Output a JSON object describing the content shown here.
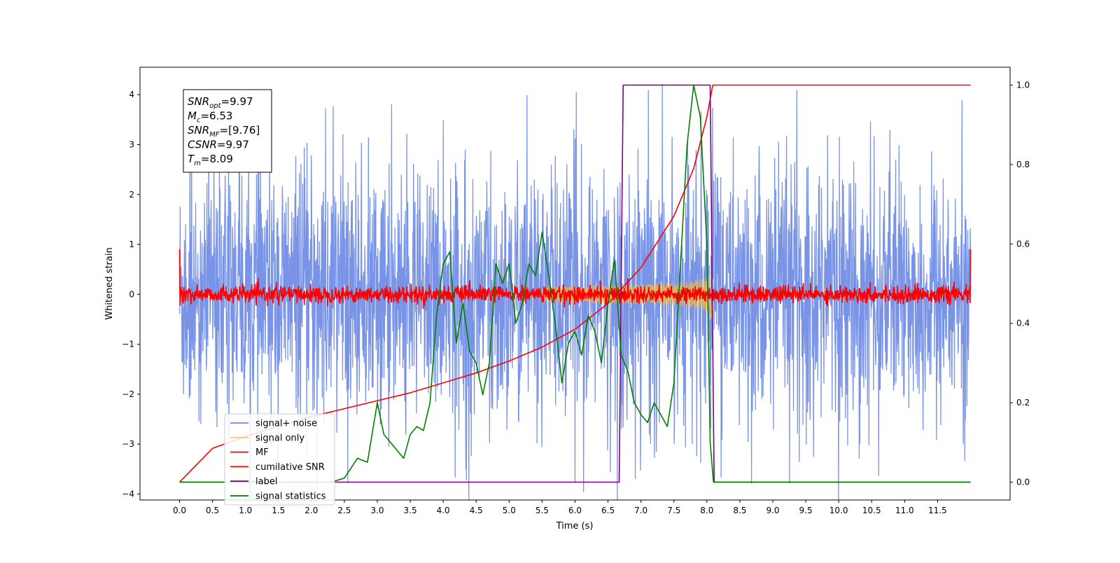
{
  "chart_data": {
    "type": "line",
    "title": "",
    "xlabel": "Time (s)",
    "ylabel": "Whitened strain",
    "xlim": [
      -0.6,
      12.6
    ],
    "ylim": [
      -4.12,
      4.55
    ],
    "y2lim": [
      -0.045,
      1.045
    ],
    "grid": false,
    "legend_position": "lower-left",
    "x_ticks": [
      "0.0",
      "0.5",
      "1.0",
      "1.5",
      "2.0",
      "2.5",
      "3.0",
      "3.5",
      "4.0",
      "4.5",
      "5.0",
      "5.5",
      "6.0",
      "6.5",
      "7.0",
      "7.5",
      "8.0",
      "8.5",
      "9.0",
      "9.5",
      "10.0",
      "10.5",
      "11.0",
      "11.5"
    ],
    "x_tick_values": [
      0,
      0.5,
      1,
      1.5,
      2,
      2.5,
      3,
      3.5,
      4,
      4.5,
      5,
      5.5,
      6,
      6.5,
      7,
      7.5,
      8,
      8.5,
      9,
      9.5,
      10,
      10.5,
      11,
      11.5
    ],
    "y_ticks": [
      "4",
      "3",
      "2",
      "1",
      "0",
      "−1",
      "−2",
      "−3",
      "−4"
    ],
    "y_tick_values": [
      4,
      3,
      2,
      1,
      0,
      -1,
      -2,
      -3,
      -4
    ],
    "y2_ticks": [
      "1.0",
      "0.8",
      "0.6",
      "0.4",
      "0.2",
      "0.0"
    ],
    "y2_tick_values": [
      1.0,
      0.8,
      0.6,
      0.4,
      0.2,
      0.0
    ],
    "annotation": {
      "lines": [
        {
          "base": "SNR",
          "sub": "opt",
          "rest": "=9.97"
        },
        {
          "base": "M",
          "sub": "c",
          "rest": "=6.53"
        },
        {
          "base": "SNR",
          "sub": "MF",
          "rest": "=[9.76]"
        },
        {
          "base": "CSNR",
          "sub": "",
          "rest": "=9.97"
        },
        {
          "base": "T",
          "sub": "m",
          "rest": "=8.09"
        }
      ]
    },
    "series": [
      {
        "name": "signal+ noise",
        "color": "#6a88e4",
        "axis": "left",
        "kind": "noise",
        "x_range": [
          0,
          12
        ],
        "amplitude_typical": 1.2,
        "amplitude_peak": 4.2
      },
      {
        "name": "signal only",
        "color": "#f5b63c",
        "axis": "left",
        "kind": "chirp",
        "x_range": [
          5.5,
          8.09
        ],
        "amplitude_max": 0.55
      },
      {
        "name": "MF",
        "color": "#ff0000",
        "axis": "left",
        "kind": "noise",
        "x_range": [
          0,
          12
        ],
        "amplitude_typical": 0.1
      },
      {
        "name": "cumilative SNR",
        "color": "#ff0000",
        "axis": "right",
        "x": [
          0,
          0.5,
          1,
          1.5,
          2,
          2.5,
          3,
          3.5,
          4,
          4.5,
          5,
          5.5,
          6,
          6.5,
          7,
          7.5,
          7.8,
          8.0,
          8.09,
          12
        ],
        "y": [
          0.0,
          0.085,
          0.115,
          0.14,
          0.165,
          0.185,
          0.205,
          0.225,
          0.25,
          0.275,
          0.305,
          0.34,
          0.385,
          0.45,
          0.54,
          0.67,
          0.79,
          0.92,
          1.0,
          1.0
        ]
      },
      {
        "name": "label",
        "color": "#800080",
        "axis": "right",
        "x": [
          0,
          6.67,
          6.73,
          8.05,
          8.11,
          12
        ],
        "y": [
          0,
          0,
          1,
          1,
          0,
          0
        ]
      },
      {
        "name": "signal statistics",
        "color": "#008000",
        "axis": "right",
        "x": [
          0,
          2.3,
          2.5,
          2.7,
          2.85,
          3.0,
          3.1,
          3.3,
          3.4,
          3.5,
          3.6,
          3.7,
          3.8,
          3.9,
          4.0,
          4.1,
          4.2,
          4.3,
          4.4,
          4.5,
          4.6,
          4.7,
          4.8,
          4.9,
          5.0,
          5.1,
          5.2,
          5.3,
          5.4,
          5.5,
          5.6,
          5.7,
          5.8,
          5.9,
          6.0,
          6.1,
          6.2,
          6.3,
          6.4,
          6.5,
          6.6,
          6.7,
          6.8,
          6.9,
          7.0,
          7.1,
          7.2,
          7.3,
          7.4,
          7.5,
          7.6,
          7.7,
          7.8,
          7.9,
          8.0,
          8.05,
          8.1,
          12
        ],
        "y": [
          0,
          0.0,
          0.01,
          0.06,
          0.05,
          0.2,
          0.12,
          0.08,
          0.06,
          0.12,
          0.14,
          0.13,
          0.2,
          0.42,
          0.55,
          0.58,
          0.35,
          0.45,
          0.33,
          0.3,
          0.22,
          0.3,
          0.55,
          0.5,
          0.55,
          0.4,
          0.45,
          0.55,
          0.52,
          0.63,
          0.52,
          0.4,
          0.25,
          0.35,
          0.38,
          0.32,
          0.42,
          0.38,
          0.3,
          0.45,
          0.56,
          0.32,
          0.28,
          0.2,
          0.17,
          0.15,
          0.2,
          0.17,
          0.14,
          0.25,
          0.55,
          0.85,
          1.0,
          0.92,
          0.6,
          0.1,
          0.0,
          0.0
        ]
      }
    ]
  }
}
